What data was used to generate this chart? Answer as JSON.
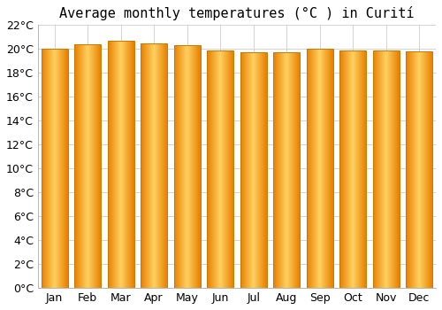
{
  "title": "Average monthly temperatures (°C ) in Curití",
  "months": [
    "Jan",
    "Feb",
    "Mar",
    "Apr",
    "May",
    "Jun",
    "Jul",
    "Aug",
    "Sep",
    "Oct",
    "Nov",
    "Dec"
  ],
  "values": [
    20.0,
    20.4,
    20.7,
    20.5,
    20.3,
    19.9,
    19.7,
    19.7,
    20.0,
    19.9,
    19.9,
    19.8
  ],
  "ylim": [
    0,
    22
  ],
  "yticks": [
    0,
    2,
    4,
    6,
    8,
    10,
    12,
    14,
    16,
    18,
    20,
    22
  ],
  "ytick_labels": [
    "0°C",
    "2°C",
    "4°C",
    "6°C",
    "8°C",
    "10°C",
    "12°C",
    "14°C",
    "16°C",
    "18°C",
    "20°C",
    "22°C"
  ],
  "bar_color_center": "#FFD060",
  "bar_color_edge": "#E88000",
  "bar_border_color": "#CC7700",
  "background_color": "#ffffff",
  "plot_bg_color": "#ffffff",
  "grid_color": "#cccccc",
  "title_fontsize": 11,
  "tick_fontsize": 9,
  "bar_width": 0.8
}
